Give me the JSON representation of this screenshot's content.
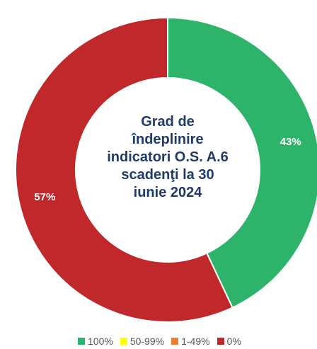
{
  "chart_data": {
    "type": "donut",
    "title": "Grad de îndeplinire indicatori O.S. A.6 scadenţi la 30 iunie 2024",
    "categories": [
      "100%",
      "50-99%",
      "1-49%",
      "0%"
    ],
    "values": [
      43,
      0,
      0,
      57
    ],
    "value_labels": [
      "43%",
      null,
      null,
      "57%"
    ],
    "colors": [
      "#2eb36b",
      "#ffff00",
      "#ed7d31",
      "#c0282b"
    ],
    "legend": "bottom"
  }
}
